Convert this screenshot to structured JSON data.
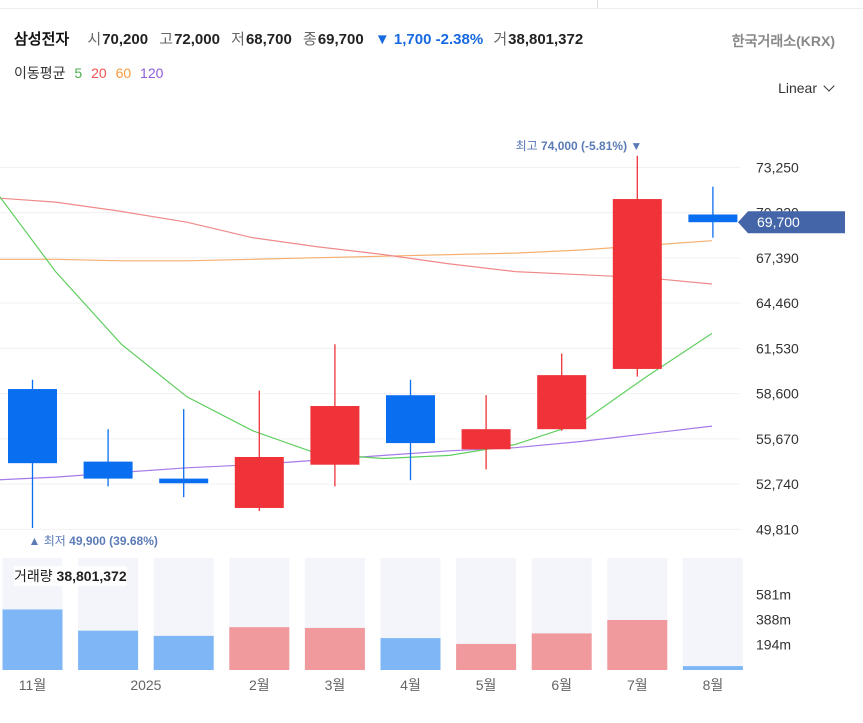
{
  "header": {
    "name": "삼성전자",
    "open_label": "시",
    "open": "70,200",
    "high_label": "고",
    "high": "72,000",
    "low_label": "저",
    "low": "68,700",
    "close_label": "종",
    "close": "69,700",
    "change_arrow": "▼",
    "change": "1,700",
    "change_pct": "-2.38%",
    "volume_label": "거",
    "volume": "38,801,372"
  },
  "exchange": "한국거래소(KRX)",
  "moving_average": {
    "label": "이동평균",
    "periods": [
      {
        "value": "5",
        "color": "#4caf50"
      },
      {
        "value": "20",
        "color": "#ef5350"
      },
      {
        "value": "60",
        "color": "#f59a3c"
      },
      {
        "value": "120",
        "color": "#8e5bdc"
      }
    ]
  },
  "scale_selector": "Linear",
  "chart_data": {
    "type": "candlestick",
    "period": "monthly",
    "price_axis_ticks": [
      73250,
      70320,
      67390,
      64460,
      61530,
      58600,
      55670,
      52740,
      49810
    ],
    "price_axis_labels": [
      "73,250",
      "70,320",
      "67,390",
      "64,460",
      "61,530",
      "58,600",
      "55,670",
      "52,740",
      "49,810"
    ],
    "y_range": [
      49320,
      75670
    ],
    "x_labels": [
      "11월",
      "2025",
      "2월",
      "3월",
      "4월",
      "5월",
      "6월",
      "7월",
      "8월"
    ],
    "candles": [
      {
        "open": 58900,
        "high": 59500,
        "low": 49900,
        "close": 54100
      },
      {
        "open": 54200,
        "high": 56300,
        "low": 52600,
        "close": 53100
      },
      {
        "open": 53100,
        "high": 57600,
        "low": 51900,
        "close": 52800
      },
      {
        "open": 51200,
        "high": 58800,
        "low": 51000,
        "close": 54500
      },
      {
        "open": 54000,
        "high": 61800,
        "low": 52600,
        "close": 57800
      },
      {
        "open": 58500,
        "high": 59500,
        "low": 53000,
        "close": 55400
      },
      {
        "open": 55000,
        "high": 58500,
        "low": 53700,
        "close": 56300
      },
      {
        "open": 56300,
        "high": 61200,
        "low": 56200,
        "close": 59800
      },
      {
        "open": 60200,
        "high": 74000,
        "low": 59700,
        "close": 71200
      },
      {
        "open": 70200,
        "high": 72000,
        "low": 68700,
        "close": 69700
      }
    ],
    "ma5": [
      72200,
      66500,
      61800,
      58400,
      56200,
      54700,
      54400,
      54600,
      55300,
      56700,
      59700,
      62500
    ],
    "ma20": [
      71300,
      71000,
      70400,
      69700,
      68700,
      68100,
      67600,
      67000,
      66500,
      66300,
      66100,
      65700
    ],
    "ma60": [
      67300,
      67300,
      67200,
      67200,
      67300,
      67400,
      67500,
      67600,
      67700,
      67900,
      68200,
      68500
    ],
    "ma120": [
      53000,
      53200,
      53500,
      53800,
      54000,
      54300,
      54600,
      54900,
      55100,
      55500,
      56000,
      56500
    ],
    "max_annotation": {
      "label": "최고",
      "value": "74,000",
      "pct": "(-5.81%)",
      "arrow": "▼"
    },
    "min_annotation": {
      "label": "최저",
      "value": "49,900",
      "pct": "(39.68%)",
      "arrow": "▲"
    },
    "current_price_label": "69,700",
    "volume": {
      "label": "거래량",
      "current": "38,801,372",
      "axis_labels": [
        "581m",
        "388m",
        "194m"
      ],
      "axis_values": [
        581,
        388,
        194
      ],
      "max": 860,
      "values": [
        465,
        302,
        262,
        329,
        323,
        245,
        200,
        281,
        384,
        30
      ]
    }
  },
  "colors": {
    "up": "#ef3339",
    "down": "#0a6ef0",
    "up_volume": "#f09a9d",
    "down_volume": "#7fb6f6",
    "volume_bg": "#f3f5fa",
    "grid": "#f0f0f0",
    "badge": "#4466a8",
    "annotation": "#5b7bb7"
  }
}
